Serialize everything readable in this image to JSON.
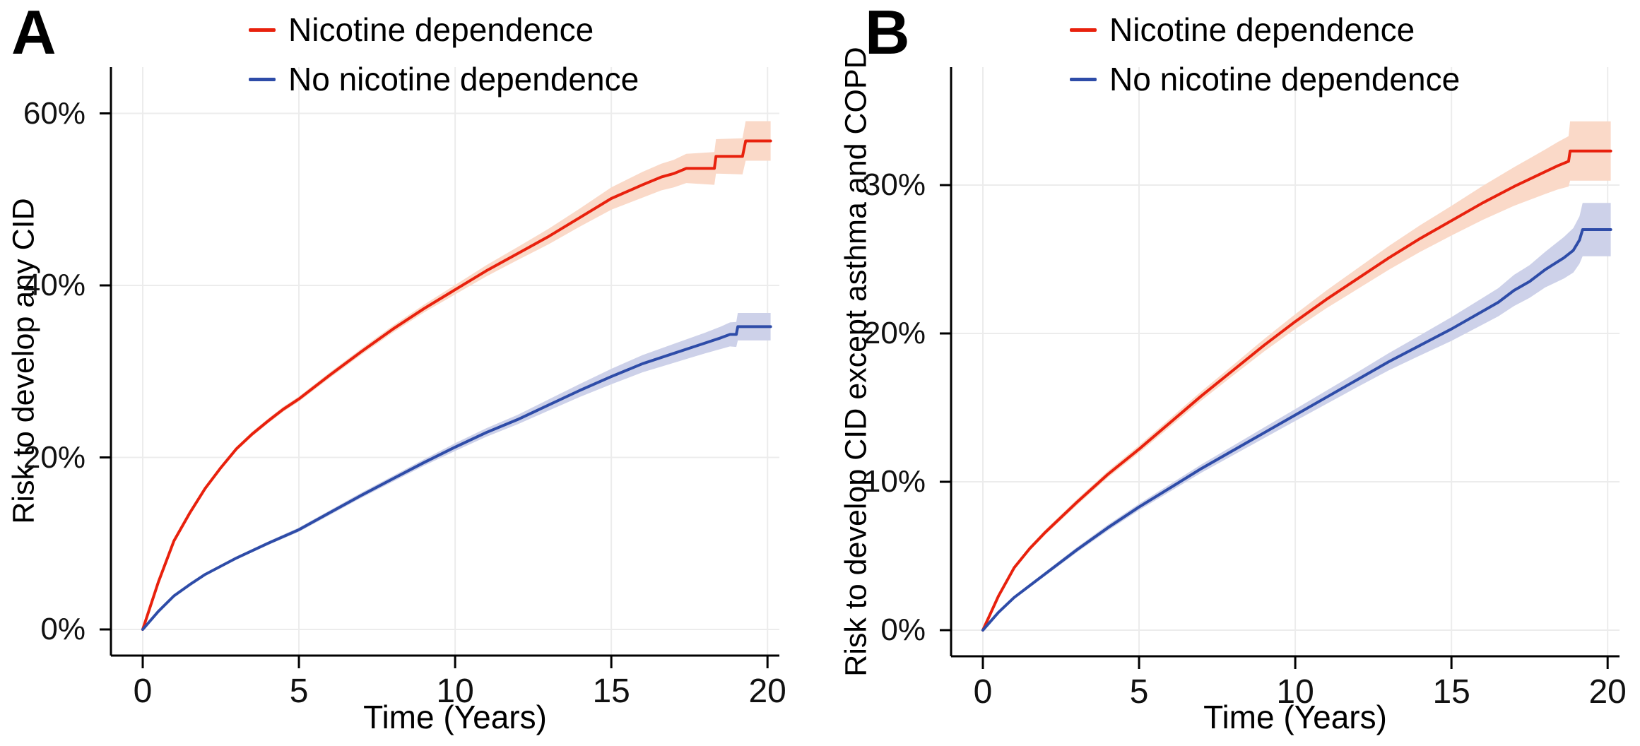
{
  "figure": {
    "background": "#ffffff",
    "grid_color": "#ececec",
    "axis_color": "#000000"
  },
  "chart_data": [
    {
      "type": "line",
      "panel_label": "A",
      "xlabel": "Time (Years)",
      "ylabel": "Risk to develop any CID",
      "xlim": [
        0,
        20
      ],
      "ylim": [
        0,
        65
      ],
      "grid": true,
      "legend_position": "top",
      "x_ticks": [
        0,
        5,
        10,
        15,
        20
      ],
      "x_tick_labels": [
        "0",
        "5",
        "10",
        "15",
        "20"
      ],
      "y_ticks": [
        0,
        20,
        40,
        60
      ],
      "y_tick_labels": [
        "0%",
        "20%",
        "40%",
        "60%"
      ],
      "series": [
        {
          "name": "Nicotine dependence",
          "color": "#e8210d",
          "band_color": "#fad9c8",
          "x": [
            0,
            0.5,
            1,
            1.5,
            2,
            2.5,
            3,
            3.5,
            4,
            4.5,
            5,
            6,
            7,
            8,
            9,
            10,
            11,
            12,
            13,
            14,
            15,
            16,
            16.6,
            17,
            17.4,
            18.3,
            18.35,
            19.2,
            19.3,
            20.1
          ],
          "y": [
            0,
            5.5,
            10.3,
            13.5,
            16.4,
            18.8,
            21.0,
            22.7,
            24.2,
            25.6,
            26.8,
            29.6,
            32.3,
            34.9,
            37.3,
            39.5,
            41.7,
            43.7,
            45.7,
            47.9,
            50.1,
            51.7,
            52.6,
            53.0,
            53.6,
            53.6,
            55.0,
            55.0,
            56.8,
            56.8
          ],
          "band_half": [
            0,
            0.1,
            0.15,
            0.18,
            0.2,
            0.22,
            0.25,
            0.27,
            0.28,
            0.29,
            0.3,
            0.33,
            0.36,
            0.4,
            0.45,
            0.55,
            0.65,
            0.75,
            0.9,
            1.05,
            1.3,
            1.5,
            1.55,
            1.6,
            1.7,
            1.9,
            2.0,
            2.1,
            2.3,
            2.3
          ]
        },
        {
          "name": "No nicotine dependence",
          "color": "#2e4ca8",
          "band_color": "#cdd1e9",
          "x": [
            0,
            0.5,
            1,
            1.5,
            2,
            3,
            4,
            5,
            6,
            7,
            8,
            9,
            10,
            11,
            12,
            13,
            14,
            15,
            16,
            17,
            17.5,
            18,
            18.5,
            18.8,
            19.0,
            19.05,
            20.1
          ],
          "y": [
            0,
            2.1,
            3.9,
            5.2,
            6.4,
            8.3,
            10.0,
            11.6,
            13.6,
            15.6,
            17.5,
            19.4,
            21.2,
            22.9,
            24.4,
            26.1,
            27.8,
            29.4,
            30.9,
            32.1,
            32.7,
            33.3,
            33.9,
            34.3,
            34.3,
            35.2,
            35.2
          ],
          "band_half": [
            0,
            0.05,
            0.1,
            0.12,
            0.15,
            0.18,
            0.2,
            0.25,
            0.27,
            0.3,
            0.33,
            0.38,
            0.45,
            0.5,
            0.55,
            0.65,
            0.75,
            0.9,
            1.0,
            1.1,
            1.15,
            1.2,
            1.3,
            1.4,
            1.45,
            1.6,
            1.6
          ]
        }
      ]
    },
    {
      "type": "line",
      "panel_label": "B",
      "xlabel": "Time (Years)",
      "ylabel": "Risk to develop CID except asthma and COPD",
      "xlim": [
        0,
        20
      ],
      "ylim": [
        0,
        38
      ],
      "grid": true,
      "legend_position": "top",
      "x_ticks": [
        0,
        5,
        10,
        15,
        20
      ],
      "x_tick_labels": [
        "0",
        "5",
        "10",
        "15",
        "20"
      ],
      "y_ticks": [
        0,
        10,
        20,
        30
      ],
      "y_tick_labels": [
        "0%",
        "10%",
        "20%",
        "30%"
      ],
      "series": [
        {
          "name": "Nicotine dependence",
          "color": "#e8210d",
          "band_color": "#fad9c8",
          "x": [
            0,
            0.5,
            1,
            1.5,
            2,
            3,
            4,
            5,
            6,
            7,
            8,
            9,
            10,
            11,
            12,
            13,
            14,
            15,
            16,
            17,
            17.5,
            18,
            18.4,
            18.75,
            18.8,
            20.1
          ],
          "y": [
            0,
            2.3,
            4.2,
            5.5,
            6.6,
            8.6,
            10.5,
            12.2,
            14.0,
            15.8,
            17.5,
            19.2,
            20.8,
            22.3,
            23.7,
            25.1,
            26.4,
            27.6,
            28.8,
            29.9,
            30.4,
            30.9,
            31.3,
            31.6,
            32.3,
            32.3
          ],
          "band_half": [
            0,
            0.08,
            0.12,
            0.15,
            0.17,
            0.2,
            0.22,
            0.25,
            0.28,
            0.31,
            0.35,
            0.42,
            0.5,
            0.6,
            0.7,
            0.8,
            0.9,
            1.0,
            1.15,
            1.3,
            1.4,
            1.5,
            1.6,
            1.7,
            2.0,
            2.0
          ]
        },
        {
          "name": "No nicotine dependence",
          "color": "#2e4ca8",
          "band_color": "#cdd1e9",
          "x": [
            0,
            0.5,
            1,
            1.5,
            2,
            3,
            4,
            5,
            6,
            7,
            8,
            9,
            10,
            11,
            12,
            13,
            14,
            15,
            16,
            16.5,
            17,
            17.5,
            18,
            18.3,
            18.6,
            18.9,
            19.1,
            19.2,
            20.1
          ],
          "y": [
            0,
            1.2,
            2.2,
            3.0,
            3.8,
            5.4,
            6.9,
            8.3,
            9.6,
            10.9,
            12.1,
            13.3,
            14.5,
            15.7,
            16.9,
            18.1,
            19.2,
            20.3,
            21.5,
            22.1,
            22.9,
            23.5,
            24.3,
            24.7,
            25.1,
            25.6,
            26.3,
            27.0,
            27.0
          ],
          "band_half": [
            0,
            0.06,
            0.1,
            0.12,
            0.14,
            0.17,
            0.2,
            0.22,
            0.25,
            0.28,
            0.32,
            0.36,
            0.4,
            0.45,
            0.5,
            0.58,
            0.68,
            0.8,
            0.9,
            0.95,
            1.05,
            1.1,
            1.2,
            1.3,
            1.4,
            1.5,
            1.6,
            1.8,
            1.8
          ]
        }
      ]
    }
  ]
}
